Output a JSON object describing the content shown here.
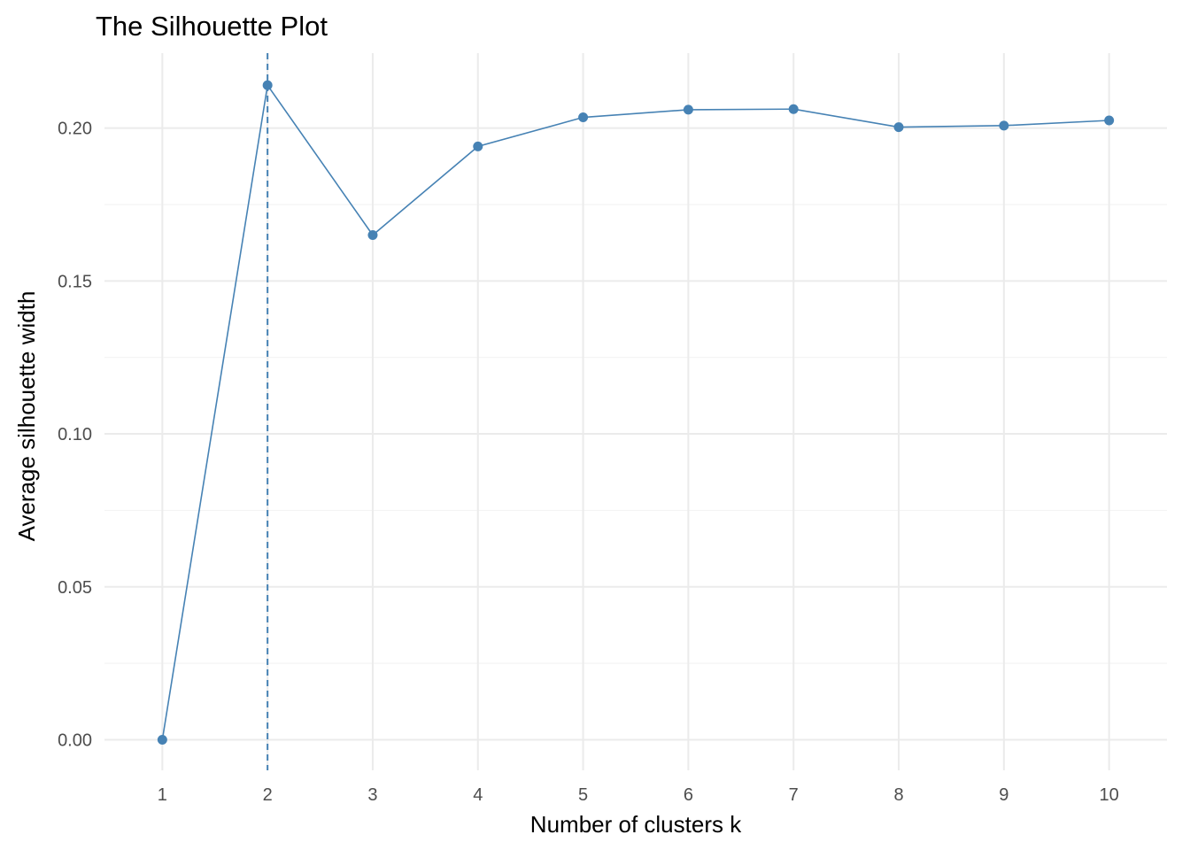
{
  "chart_data": {
    "type": "line",
    "title": "The Silhouette Plot",
    "xlabel": "Number of clusters k",
    "ylabel": "Average silhouette width",
    "categories": [
      "1",
      "2",
      "3",
      "4",
      "5",
      "6",
      "7",
      "8",
      "9",
      "10"
    ],
    "x": [
      1,
      2,
      3,
      4,
      5,
      6,
      7,
      8,
      9,
      10
    ],
    "series": [
      {
        "values": [
          0.0,
          0.214,
          0.165,
          0.194,
          0.2035,
          0.206,
          0.2062,
          0.2003,
          0.2008,
          0.2025
        ],
        "color": "#4682B4"
      }
    ],
    "yticks": [
      0.0,
      0.05,
      0.1,
      0.15,
      0.2
    ],
    "ytick_labels": [
      "0.00",
      "0.05",
      "0.10",
      "0.15",
      "0.20"
    ],
    "ylim": [
      -0.01,
      0.2245
    ],
    "xlim": [
      0.45,
      10.55
    ],
    "optimal_k": 2,
    "reference_line": {
      "x": 2,
      "style": "dashed",
      "color": "#4682B4"
    },
    "grid": true,
    "legend": "none"
  }
}
